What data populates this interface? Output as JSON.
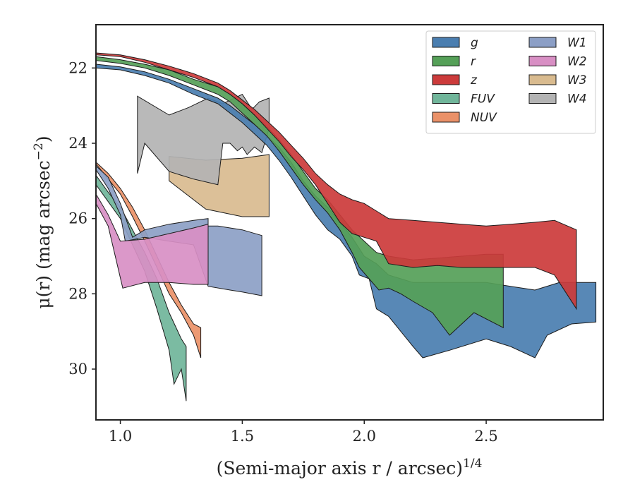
{
  "chart_data": {
    "type": "area",
    "xlabel": "(Semi-major axis r / arcsec)",
    "xlabel_sup": "1/4",
    "ylabel": "μ(r) (mag arcsec",
    "ylabel_sup": "−2",
    "ylabel_end": ")",
    "xlim": [
      0.9,
      2.98
    ],
    "ylim": [
      31.35,
      20.85
    ],
    "y_inverted": true,
    "xticks": [
      1.0,
      1.5,
      2.0,
      2.5
    ],
    "xtick_labels": [
      "1.0",
      "1.5",
      "2.0",
      "2.5"
    ],
    "yticks": [
      22,
      24,
      26,
      28,
      30
    ],
    "ytick_labels": [
      "22",
      "24",
      "26",
      "28",
      "30"
    ],
    "grid": false,
    "legend_position": "top-right",
    "legend_columns": 2,
    "series": [
      {
        "name": "W3",
        "color": "#d9bb8f",
        "upper": [
          [
            1.2,
            24.35
          ],
          [
            1.35,
            24.45
          ],
          [
            1.5,
            24.4
          ],
          [
            1.61,
            24.3
          ]
        ],
        "lower": [
          [
            1.2,
            25.0
          ],
          [
            1.35,
            25.75
          ],
          [
            1.5,
            25.95
          ],
          [
            1.61,
            25.95
          ]
        ]
      },
      {
        "name": "W4",
        "color": "#b3b3b3",
        "upper": [
          [
            1.07,
            22.75
          ],
          [
            1.2,
            23.25
          ],
          [
            1.28,
            23.05
          ],
          [
            1.36,
            22.8
          ],
          [
            1.42,
            22.95
          ],
          [
            1.5,
            22.7
          ],
          [
            1.54,
            23.1
          ],
          [
            1.57,
            22.9
          ],
          [
            1.61,
            22.8
          ]
        ],
        "lower": [
          [
            1.07,
            24.8
          ],
          [
            1.1,
            24.0
          ],
          [
            1.2,
            24.75
          ],
          [
            1.3,
            24.95
          ],
          [
            1.4,
            25.1
          ],
          [
            1.42,
            24.0
          ],
          [
            1.45,
            24.0
          ],
          [
            1.48,
            24.2
          ],
          [
            1.5,
            24.1
          ],
          [
            1.52,
            24.3
          ],
          [
            1.55,
            24.1
          ],
          [
            1.58,
            24.25
          ],
          [
            1.61,
            23.6
          ]
        ]
      },
      {
        "name": "g",
        "color": "#4a7eb0",
        "upper": [
          [
            0.9,
            21.9
          ],
          [
            1.0,
            21.97
          ],
          [
            1.1,
            22.1
          ],
          [
            1.2,
            22.3
          ],
          [
            1.3,
            22.55
          ],
          [
            1.4,
            22.8
          ],
          [
            1.45,
            23.0
          ],
          [
            1.5,
            23.25
          ],
          [
            1.55,
            23.5
          ],
          [
            1.6,
            23.8
          ],
          [
            1.65,
            24.1
          ],
          [
            1.7,
            24.5
          ],
          [
            1.75,
            25.0
          ],
          [
            1.8,
            25.4
          ],
          [
            1.85,
            25.7
          ],
          [
            1.9,
            26.1
          ],
          [
            1.95,
            26.5
          ],
          [
            2.0,
            27.0
          ],
          [
            2.05,
            27.2
          ],
          [
            2.1,
            27.5
          ],
          [
            2.15,
            27.6
          ],
          [
            2.2,
            27.7
          ],
          [
            2.3,
            27.7
          ],
          [
            2.4,
            27.7
          ],
          [
            2.5,
            27.7
          ],
          [
            2.6,
            27.8
          ],
          [
            2.7,
            27.9
          ],
          [
            2.8,
            27.7
          ],
          [
            2.95,
            27.7
          ]
        ],
        "lower": [
          [
            0.9,
            22.0
          ],
          [
            1.0,
            22.05
          ],
          [
            1.1,
            22.2
          ],
          [
            1.2,
            22.4
          ],
          [
            1.3,
            22.7
          ],
          [
            1.4,
            22.95
          ],
          [
            1.45,
            23.2
          ],
          [
            1.5,
            23.45
          ],
          [
            1.55,
            23.75
          ],
          [
            1.6,
            24.05
          ],
          [
            1.65,
            24.45
          ],
          [
            1.7,
            24.9
          ],
          [
            1.75,
            25.4
          ],
          [
            1.8,
            25.9
          ],
          [
            1.85,
            26.3
          ],
          [
            1.9,
            26.55
          ],
          [
            1.95,
            27.0
          ],
          [
            1.98,
            27.5
          ],
          [
            2.02,
            27.6
          ],
          [
            2.05,
            28.4
          ],
          [
            2.1,
            28.6
          ],
          [
            2.15,
            29.0
          ],
          [
            2.2,
            29.4
          ],
          [
            2.24,
            29.7
          ],
          [
            2.35,
            29.5
          ],
          [
            2.5,
            29.2
          ],
          [
            2.6,
            29.4
          ],
          [
            2.7,
            29.7
          ],
          [
            2.75,
            29.1
          ],
          [
            2.85,
            28.8
          ],
          [
            2.95,
            28.75
          ]
        ]
      },
      {
        "name": "r",
        "color": "#55a058",
        "upper": [
          [
            0.9,
            21.7
          ],
          [
            1.0,
            21.78
          ],
          [
            1.1,
            21.9
          ],
          [
            1.2,
            22.05
          ],
          [
            1.3,
            22.3
          ],
          [
            1.4,
            22.5
          ],
          [
            1.45,
            22.7
          ],
          [
            1.5,
            22.95
          ],
          [
            1.55,
            23.25
          ],
          [
            1.6,
            23.55
          ],
          [
            1.65,
            23.9
          ],
          [
            1.7,
            24.3
          ],
          [
            1.75,
            24.75
          ],
          [
            1.8,
            25.2
          ],
          [
            1.85,
            25.5
          ],
          [
            1.9,
            25.9
          ],
          [
            1.95,
            26.3
          ],
          [
            2.0,
            26.6
          ],
          [
            2.05,
            26.9
          ],
          [
            2.1,
            27.0
          ],
          [
            2.2,
            27.1
          ],
          [
            2.3,
            27.05
          ],
          [
            2.4,
            27.0
          ],
          [
            2.5,
            26.95
          ],
          [
            2.57,
            26.95
          ]
        ],
        "lower": [
          [
            0.9,
            21.8
          ],
          [
            1.0,
            21.88
          ],
          [
            1.1,
            22.0
          ],
          [
            1.2,
            22.2
          ],
          [
            1.3,
            22.45
          ],
          [
            1.4,
            22.7
          ],
          [
            1.45,
            22.9
          ],
          [
            1.5,
            23.2
          ],
          [
            1.55,
            23.5
          ],
          [
            1.6,
            23.8
          ],
          [
            1.65,
            24.2
          ],
          [
            1.7,
            24.65
          ],
          [
            1.75,
            25.1
          ],
          [
            1.8,
            25.5
          ],
          [
            1.85,
            25.85
          ],
          [
            1.9,
            26.3
          ],
          [
            1.95,
            26.9
          ],
          [
            1.98,
            27.3
          ],
          [
            2.02,
            27.6
          ],
          [
            2.06,
            27.9
          ],
          [
            2.1,
            27.85
          ],
          [
            2.15,
            28.0
          ],
          [
            2.2,
            28.2
          ],
          [
            2.28,
            28.5
          ],
          [
            2.35,
            29.1
          ],
          [
            2.45,
            28.5
          ],
          [
            2.57,
            28.9
          ]
        ]
      },
      {
        "name": "z",
        "color": "#cc3b3b",
        "upper": [
          [
            0.9,
            21.6
          ],
          [
            1.0,
            21.65
          ],
          [
            1.1,
            21.78
          ],
          [
            1.2,
            21.95
          ],
          [
            1.3,
            22.15
          ],
          [
            1.4,
            22.4
          ],
          [
            1.45,
            22.6
          ],
          [
            1.5,
            22.85
          ],
          [
            1.55,
            23.1
          ],
          [
            1.6,
            23.4
          ],
          [
            1.65,
            23.7
          ],
          [
            1.7,
            24.05
          ],
          [
            1.75,
            24.4
          ],
          [
            1.8,
            24.8
          ],
          [
            1.85,
            25.1
          ],
          [
            1.9,
            25.35
          ],
          [
            1.95,
            25.5
          ],
          [
            2.0,
            25.6
          ],
          [
            2.05,
            25.8
          ],
          [
            2.1,
            26.0
          ],
          [
            2.2,
            26.05
          ],
          [
            2.3,
            26.1
          ],
          [
            2.4,
            26.15
          ],
          [
            2.5,
            26.2
          ],
          [
            2.6,
            26.15
          ],
          [
            2.7,
            26.1
          ],
          [
            2.78,
            26.05
          ],
          [
            2.87,
            26.3
          ]
        ],
        "lower": [
          [
            0.9,
            21.65
          ],
          [
            1.0,
            21.7
          ],
          [
            1.1,
            21.85
          ],
          [
            1.2,
            22.05
          ],
          [
            1.3,
            22.25
          ],
          [
            1.4,
            22.5
          ],
          [
            1.45,
            22.7
          ],
          [
            1.5,
            22.95
          ],
          [
            1.55,
            23.25
          ],
          [
            1.6,
            23.6
          ],
          [
            1.65,
            23.95
          ],
          [
            1.7,
            24.35
          ],
          [
            1.75,
            24.7
          ],
          [
            1.8,
            25.1
          ],
          [
            1.85,
            25.6
          ],
          [
            1.9,
            26.1
          ],
          [
            1.95,
            26.4
          ],
          [
            2.0,
            26.5
          ],
          [
            2.05,
            26.6
          ],
          [
            2.1,
            27.2
          ],
          [
            2.2,
            27.3
          ],
          [
            2.3,
            27.25
          ],
          [
            2.4,
            27.3
          ],
          [
            2.5,
            27.3
          ],
          [
            2.6,
            27.3
          ],
          [
            2.7,
            27.3
          ],
          [
            2.78,
            27.5
          ],
          [
            2.87,
            28.4
          ]
        ]
      },
      {
        "name": "FUV",
        "color": "#70b59a",
        "upper": [
          [
            0.9,
            24.85
          ],
          [
            0.95,
            25.3
          ],
          [
            1.0,
            25.7
          ],
          [
            1.05,
            26.3
          ],
          [
            1.1,
            26.9
          ],
          [
            1.15,
            27.6
          ],
          [
            1.2,
            28.5
          ],
          [
            1.25,
            29.2
          ],
          [
            1.27,
            29.4
          ]
        ],
        "lower": [
          [
            0.9,
            25.1
          ],
          [
            0.95,
            25.55
          ],
          [
            1.0,
            26.0
          ],
          [
            1.05,
            26.7
          ],
          [
            1.1,
            27.4
          ],
          [
            1.15,
            28.4
          ],
          [
            1.2,
            29.5
          ],
          [
            1.22,
            30.4
          ],
          [
            1.25,
            30.0
          ],
          [
            1.27,
            30.85
          ]
        ]
      },
      {
        "name": "NUV",
        "color": "#ea9168",
        "upper": [
          [
            0.9,
            24.5
          ],
          [
            0.95,
            24.8
          ],
          [
            1.0,
            25.2
          ],
          [
            1.05,
            25.7
          ],
          [
            1.1,
            26.3
          ],
          [
            1.15,
            27.0
          ],
          [
            1.2,
            27.7
          ],
          [
            1.25,
            28.3
          ],
          [
            1.3,
            28.8
          ],
          [
            1.33,
            28.9
          ]
        ],
        "lower": [
          [
            0.9,
            24.55
          ],
          [
            0.95,
            24.95
          ],
          [
            1.0,
            25.35
          ],
          [
            1.05,
            25.95
          ],
          [
            1.1,
            26.6
          ],
          [
            1.15,
            27.3
          ],
          [
            1.2,
            28.0
          ],
          [
            1.25,
            28.5
          ],
          [
            1.3,
            29.1
          ],
          [
            1.33,
            29.7
          ]
        ]
      },
      {
        "name": "W1",
        "color": "#8c9fc6",
        "upper": [
          [
            0.9,
            24.6
          ],
          [
            0.95,
            24.9
          ],
          [
            1.0,
            25.6
          ],
          [
            1.05,
            26.5
          ],
          [
            1.1,
            26.3
          ],
          [
            1.2,
            26.15
          ],
          [
            1.3,
            26.05
          ],
          [
            1.36,
            26.0
          ]
        ],
        "lower": [
          [
            0.9,
            24.7
          ],
          [
            0.95,
            25.2
          ],
          [
            1.0,
            25.9
          ],
          [
            1.02,
            26.6
          ],
          [
            1.1,
            26.5
          ],
          [
            1.2,
            26.6
          ],
          [
            1.3,
            26.7
          ],
          [
            1.36,
            27.8
          ],
          [
            1.45,
            27.9
          ],
          [
            1.5,
            27.95
          ],
          [
            1.58,
            28.05
          ],
          [
            1.58,
            26.45
          ],
          [
            1.5,
            26.3
          ],
          [
            1.4,
            26.2
          ],
          [
            1.36,
            26.2
          ]
        ]
      },
      {
        "name": "W2",
        "color": "#d88fc4",
        "upper": [
          [
            0.9,
            25.35
          ],
          [
            0.95,
            25.9
          ],
          [
            1.0,
            26.6
          ],
          [
            1.1,
            26.55
          ],
          [
            1.2,
            26.4
          ],
          [
            1.3,
            26.25
          ],
          [
            1.36,
            26.15
          ]
        ],
        "lower": [
          [
            0.9,
            25.6
          ],
          [
            0.95,
            26.2
          ],
          [
            1.01,
            27.85
          ],
          [
            1.1,
            27.7
          ],
          [
            1.2,
            27.7
          ],
          [
            1.3,
            27.75
          ],
          [
            1.36,
            27.75
          ]
        ]
      }
    ]
  }
}
